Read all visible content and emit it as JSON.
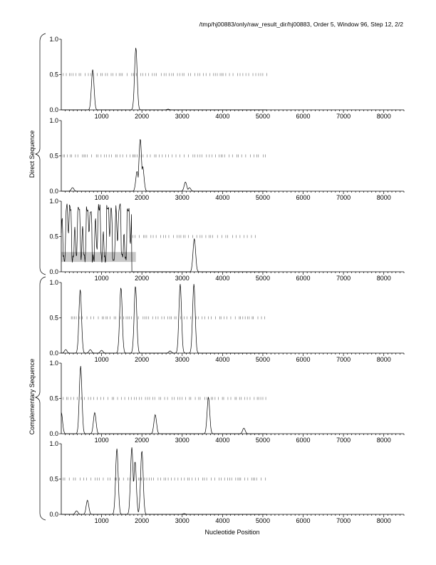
{
  "figure": {
    "title": "/tmp/hj00883/only/raw_result_dir/hj00883, Order 5, Window 96, Step 12, 2/2",
    "xlabel": "Nucleotide Position",
    "group_labels": [
      "Direct Sequence",
      "Complementary Sequence"
    ]
  },
  "chart_data": [
    {
      "type": "line",
      "panel": 1,
      "group": "Direct Sequence",
      "xlim": [
        0,
        8500
      ],
      "ylim": [
        0,
        1.0
      ],
      "x_ticks": [
        1000,
        2000,
        3000,
        4000,
        5000,
        6000,
        7000,
        8000
      ],
      "y_ticks": [
        "0.0",
        "0.5",
        "1.0"
      ],
      "threshold": {
        "y": 0.5,
        "x_range": [
          50,
          5100
        ]
      },
      "peaks": [
        [
          780,
          0.57
        ],
        [
          1850,
          0.88
        ],
        [
          2650,
          0.01
        ]
      ],
      "highlight": null
    },
    {
      "type": "line",
      "panel": 2,
      "group": "Direct Sequence",
      "xlim": [
        0,
        8500
      ],
      "ylim": [
        0,
        1.0
      ],
      "x_ticks": [
        1000,
        2000,
        3000,
        4000,
        5000,
        6000,
        7000,
        8000
      ],
      "y_ticks": [
        "0.0",
        "0.5",
        "1.0"
      ],
      "threshold": {
        "y": 0.5,
        "x_range": [
          50,
          5100
        ]
      },
      "peaks": [
        [
          280,
          0.05
        ],
        [
          1880,
          0.28
        ],
        [
          1960,
          0.74
        ],
        [
          2020,
          0.35
        ],
        [
          3080,
          0.13
        ],
        [
          3180,
          0.05
        ]
      ],
      "highlight": null
    },
    {
      "type": "line",
      "panel": 3,
      "group": "Direct Sequence",
      "xlim": [
        0,
        8500
      ],
      "ylim": [
        0,
        1.0
      ],
      "x_ticks": [
        1000,
        2000,
        3000,
        4000,
        5000,
        6000,
        7000,
        8000
      ],
      "y_ticks": [
        "0.0",
        "0.5",
        "1.0"
      ],
      "threshold": {
        "y": 0.5,
        "x_range": [
          1700,
          4900
        ]
      },
      "peaks": [
        [
          3300,
          0.47
        ]
      ],
      "dense_region": [
        0,
        1750
      ],
      "highlight": {
        "x_range": [
          0,
          1850
        ],
        "y_range": [
          0.14,
          0.28
        ]
      }
    },
    {
      "type": "line",
      "panel": 4,
      "group": "Complementary Sequence",
      "xlim": [
        0,
        8500
      ],
      "ylim": [
        0,
        1.0
      ],
      "x_ticks": [
        1000,
        2000,
        3000,
        4000,
        5000,
        6000,
        7000,
        8000
      ],
      "y_ticks": [
        "0.0",
        "0.5",
        "1.0"
      ],
      "threshold": {
        "y": 0.5,
        "x_range": [
          250,
          5100
        ]
      },
      "peaks": [
        [
          110,
          0.05
        ],
        [
          470,
          0.9
        ],
        [
          720,
          0.05
        ],
        [
          1000,
          0.04
        ],
        [
          1480,
          0.93
        ],
        [
          1840,
          0.95
        ],
        [
          2700,
          0.03
        ],
        [
          2950,
          0.98
        ],
        [
          3290,
          0.98
        ]
      ],
      "highlight": null
    },
    {
      "type": "line",
      "panel": 5,
      "group": "Complementary Sequence",
      "xlim": [
        0,
        8500
      ],
      "ylim": [
        0,
        1.0
      ],
      "x_ticks": [
        1000,
        2000,
        3000,
        4000,
        5000,
        6000,
        7000,
        8000
      ],
      "y_ticks": [
        "0.0",
        "0.5",
        "1.0"
      ],
      "threshold": {
        "y": 0.5,
        "x_range": [
          50,
          5100
        ]
      },
      "peaks": [
        [
          0,
          0.3
        ],
        [
          480,
          0.96
        ],
        [
          830,
          0.3
        ],
        [
          2330,
          0.27
        ],
        [
          3650,
          0.52
        ],
        [
          4530,
          0.08
        ]
      ],
      "highlight": null
    },
    {
      "type": "line",
      "panel": 6,
      "group": "Complementary Sequence",
      "xlim": [
        0,
        8500
      ],
      "ylim": [
        0,
        1.0
      ],
      "x_ticks": [
        1000,
        2000,
        3000,
        4000,
        5000,
        6000,
        7000,
        8000
      ],
      "y_ticks": [
        "0.0",
        "0.5",
        "1.0"
      ],
      "threshold": {
        "y": 0.5,
        "x_range": [
          50,
          5100
        ]
      },
      "peaks": [
        [
          380,
          0.05
        ],
        [
          650,
          0.2
        ],
        [
          1380,
          0.93
        ],
        [
          1750,
          0.95
        ],
        [
          1830,
          0.75
        ],
        [
          2000,
          0.9
        ],
        [
          3050,
          0.01
        ]
      ],
      "highlight": null
    }
  ]
}
